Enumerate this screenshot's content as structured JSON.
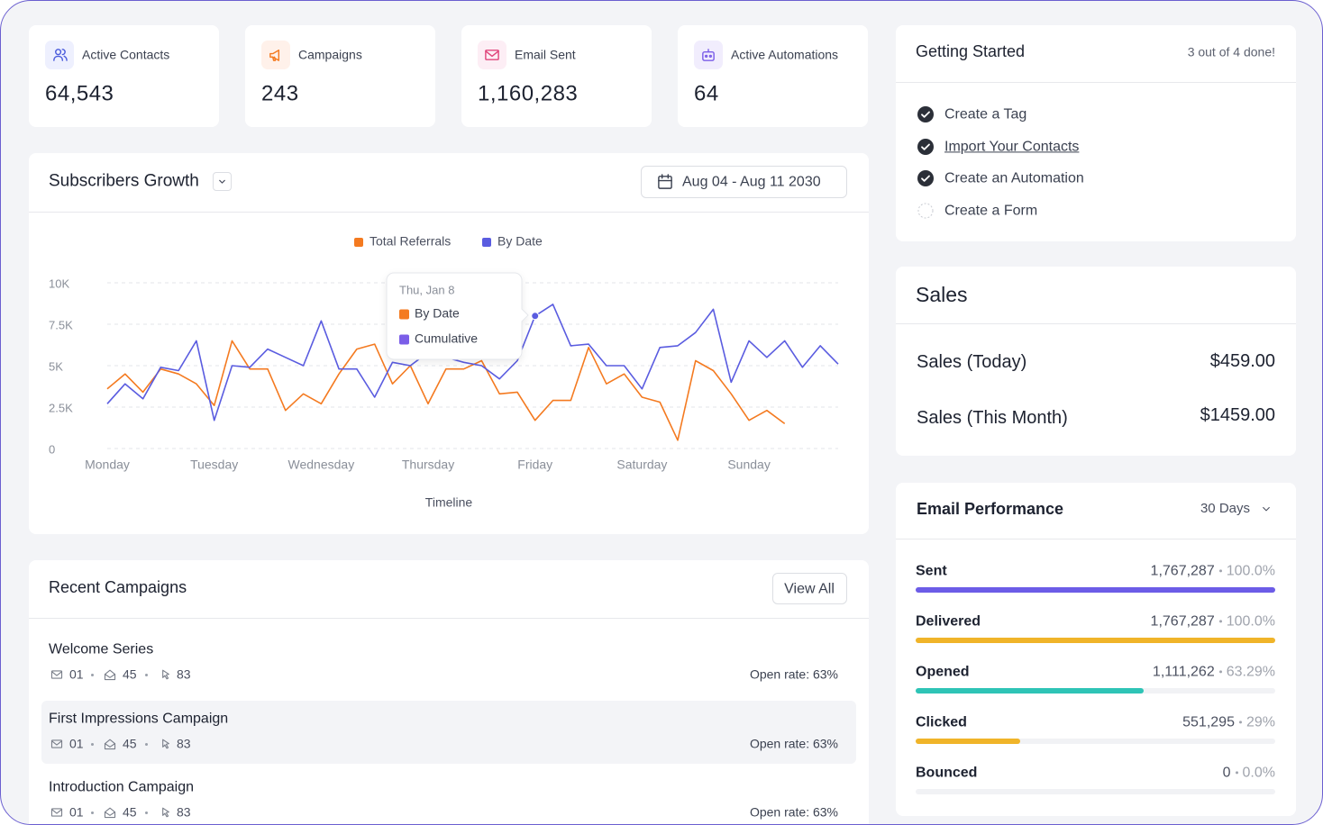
{
  "stats": [
    {
      "label": "Active Contacts",
      "value": "64,543"
    },
    {
      "label": "Campaigns",
      "value": "243"
    },
    {
      "label": "Email Sent",
      "value": "1,160,283"
    },
    {
      "label": "Active Automations",
      "value": "64"
    }
  ],
  "chart_data": {
    "type": "line",
    "title": "Subscribers Growth",
    "date_range": "Aug 04 - Aug 11 2030",
    "x_label": "Timeline",
    "grid": true,
    "categories": [
      "Monday",
      null,
      null,
      null,
      null,
      null,
      "Tuesday",
      null,
      null,
      null,
      null,
      null,
      "Wednesday",
      null,
      null,
      null,
      null,
      null,
      "Thursday",
      null,
      null,
      null,
      null,
      null,
      "Friday",
      null,
      null,
      null,
      null,
      null,
      "Saturday",
      null,
      null,
      null,
      null,
      null,
      "Sunday",
      null,
      null,
      null,
      null,
      null
    ],
    "ylim": [
      0,
      10000
    ],
    "yticks": [
      {
        "value": 0,
        "label": "0"
      },
      {
        "value": 2500,
        "label": "2.5K"
      },
      {
        "value": 5000,
        "label": "5K"
      },
      {
        "value": 7500,
        "label": "7.5K"
      },
      {
        "value": 10000,
        "label": "10K"
      }
    ],
    "series": [
      {
        "name": "Total Referrals",
        "color": "#f47a20",
        "values": [
          3600,
          4500,
          3400,
          4800,
          4500,
          3900,
          2600,
          6500,
          4800,
          4800,
          2300,
          3300,
          2700,
          4500,
          6000,
          6300,
          3900,
          5000,
          2700,
          4800,
          4800,
          5300,
          3300,
          3400,
          1700,
          2900,
          2900,
          6100,
          3900,
          4500,
          3100,
          2800,
          500,
          5300,
          4700,
          3300,
          1700,
          2300,
          1500,
          null,
          null,
          null
        ]
      },
      {
        "name": "By Date",
        "color": "#5a5ce0",
        "values": [
          2700,
          3900,
          3000,
          4900,
          4700,
          6500,
          1700,
          5000,
          4900,
          6000,
          5500,
          5000,
          7700,
          4800,
          4800,
          3100,
          5200,
          5000,
          5800,
          5500,
          5200,
          5000,
          4200,
          5300,
          8000,
          8700,
          6200,
          6300,
          5000,
          5000,
          3600,
          6100,
          6200,
          7000,
          8400,
          4000,
          6500,
          5500,
          6500,
          4900,
          6200,
          5100
        ]
      }
    ],
    "tooltip": {
      "title": "Thu, Jan 8",
      "items": [
        {
          "name": "By Date",
          "color": "#f47a20"
        },
        {
          "name": "Cumulative",
          "color": "#7b5ee8"
        }
      ]
    }
  },
  "campaigns": {
    "title": "Recent Campaigns",
    "action": "View All",
    "rows": [
      {
        "name": "Welcome Series",
        "sent": "01",
        "opened": "45",
        "clicked": "83",
        "open_rate": "Open rate: 63%"
      },
      {
        "name": "First Impressions Campaign",
        "sent": "01",
        "opened": "45",
        "clicked": "83",
        "open_rate": "Open rate: 63%"
      },
      {
        "name": "Introduction Campaign",
        "sent": "01",
        "opened": "45",
        "clicked": "83",
        "open_rate": "Open rate: 63%"
      }
    ]
  },
  "getting_started": {
    "title": "Getting Started",
    "progress": "3 out of 4 done!",
    "items": [
      {
        "label": "Create a Tag",
        "done": true
      },
      {
        "label": "Import Your Contacts",
        "done": true
      },
      {
        "label": "Create an Automation",
        "done": true
      },
      {
        "label": "Create a Form",
        "done": false
      }
    ]
  },
  "sales": {
    "title": "Sales",
    "rows": [
      {
        "label": "Sales (Today)",
        "value": "$459.00"
      },
      {
        "label": "Sales (This Month)",
        "value": "$1459.00"
      }
    ]
  },
  "email_performance": {
    "title": "Email Performance",
    "period": "30 Days",
    "rows": [
      {
        "label": "Sent",
        "count": "1,767,287",
        "value": 100,
        "value_label": "100.0%",
        "color": "#6c5ce7"
      },
      {
        "label": "Delivered",
        "count": "1,767,287",
        "value": 100,
        "value_label": "100.0%",
        "color": "#f0b429"
      },
      {
        "label": "Opened",
        "count": "1,111,262",
        "value": 63.29,
        "value_label": "63.29%",
        "color": "#2ec4b6"
      },
      {
        "label": "Clicked",
        "count": "551,295",
        "value": 29,
        "value_label": "29%",
        "color": "#f0b429"
      },
      {
        "label": "Bounced",
        "count": "0",
        "value": 0,
        "value_label": "0.0%",
        "color": "#c9ccd3"
      }
    ]
  }
}
